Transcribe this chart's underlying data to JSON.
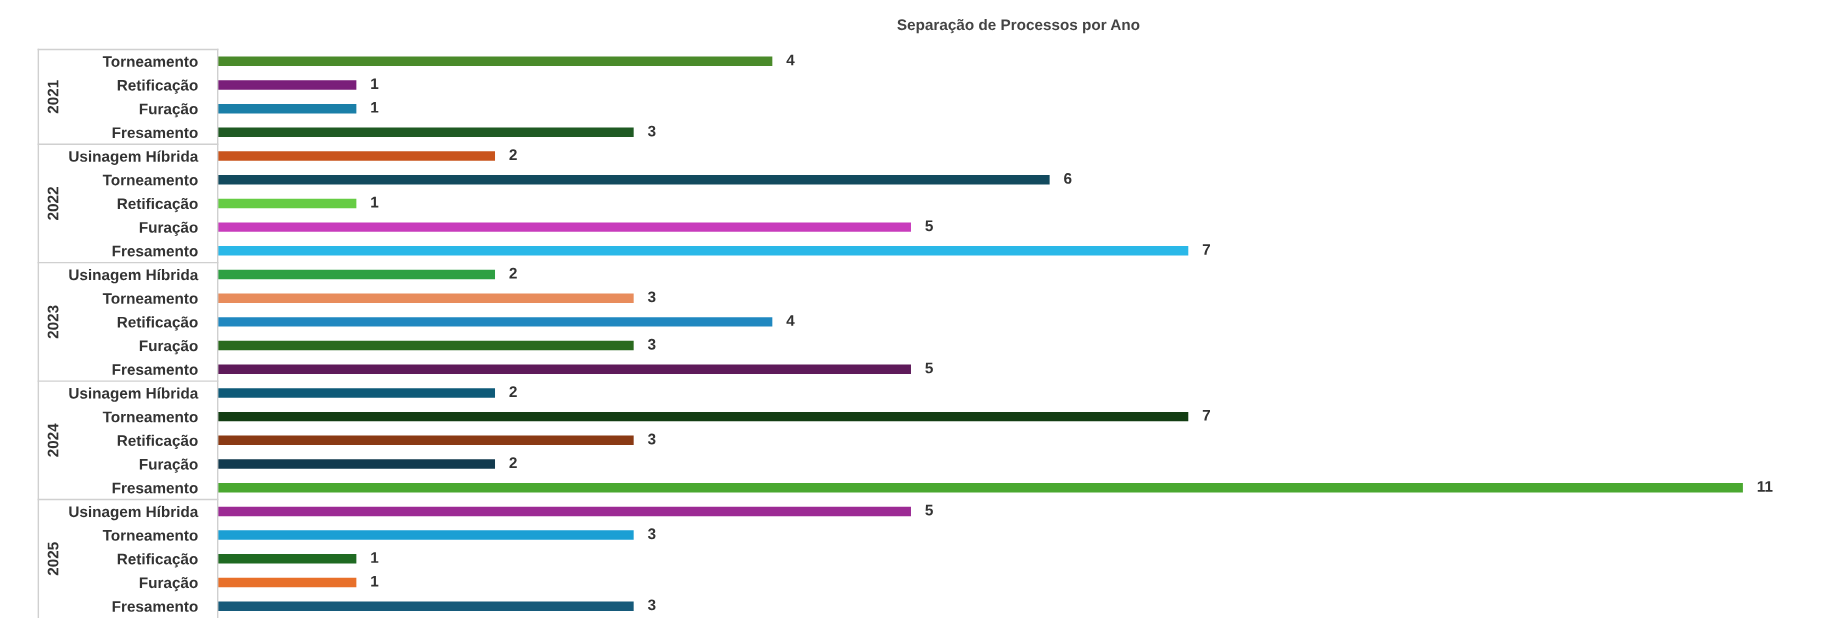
{
  "chart_data": {
    "type": "bar",
    "orientation": "horizontal",
    "title": "Separação de Processos por Ano",
    "categories": [
      "Torneamento",
      "Retificação",
      "Furação",
      "Fresamento",
      "Usinagem Híbrida",
      "Torneamento",
      "Retificação",
      "Furação",
      "Fresamento",
      "Usinagem Híbrida",
      "Torneamento",
      "Retificação",
      "Furação",
      "Fresamento",
      "Usinagem Híbrida",
      "Torneamento",
      "Retificação",
      "Furação",
      "Fresamento",
      "Usinagem Híbrida",
      "Torneamento",
      "Retificação",
      "Furação",
      "Fresamento"
    ],
    "values": [
      4,
      1,
      1,
      3,
      2,
      6,
      1,
      5,
      7,
      2,
      3,
      4,
      3,
      5,
      2,
      7,
      3,
      2,
      11,
      5,
      3,
      1,
      1,
      3
    ],
    "colors": [
      "#4a8a2a",
      "#7a1f7a",
      "#1a7fa8",
      "#1f5a23",
      "#c9541c",
      "#124a5e",
      "#66cc44",
      "#c83cbc",
      "#2ab8e8",
      "#2ea043",
      "#e88c5c",
      "#2088c0",
      "#2a6a1e",
      "#5e1a5a",
      "#0e5a78",
      "#133d13",
      "#8a3a14",
      "#123a4e",
      "#4aa830",
      "#9c2a94",
      "#1b9fd4",
      "#1f6a22",
      "#e8702a",
      "#165a7a"
    ],
    "annotations": [
      "2021",
      "2022",
      "2023",
      "2024",
      "2025"
    ],
    "data_labels": true,
    "grid": false
  }
}
